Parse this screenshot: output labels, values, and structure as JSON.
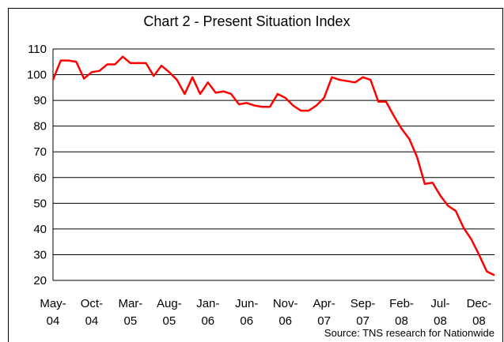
{
  "chart_data": {
    "type": "line",
    "title": "Chart 2 - Present Situation Index",
    "annotation": "Source: TNS research for Nationwide",
    "categories": [
      "May-04",
      null,
      null,
      null,
      null,
      "Oct-04",
      null,
      null,
      null,
      null,
      "Mar-05",
      null,
      null,
      null,
      null,
      "Aug-05",
      null,
      null,
      null,
      null,
      "Jan-06",
      null,
      null,
      null,
      null,
      "Jun-06",
      null,
      null,
      null,
      null,
      "Nov-06",
      null,
      null,
      null,
      null,
      "Apr-07",
      null,
      null,
      null,
      null,
      "Sep-07",
      null,
      null,
      null,
      null,
      "Feb-08",
      null,
      null,
      null,
      null,
      "Jul-08",
      null,
      null,
      null,
      null,
      "Dec-08",
      null,
      null
    ],
    "series": [
      {
        "name": "Present Situation Index",
        "color": "#ff0000",
        "values": [
          98,
          105.5,
          105.5,
          105,
          98.5,
          101,
          101.5,
          104,
          104,
          107,
          104.5,
          104.5,
          104.5,
          99.5,
          103.5,
          101,
          98,
          92.5,
          99,
          92.5,
          97,
          93,
          93.5,
          92.5,
          88.5,
          89,
          88,
          87.5,
          87.5,
          92.5,
          91,
          88,
          86,
          86,
          88,
          91,
          99,
          98,
          97.5,
          97,
          99,
          98,
          89.5,
          89.5,
          84,
          79,
          75,
          68,
          57.5,
          58,
          53,
          49,
          47,
          40.5,
          36,
          30,
          23.5,
          22
        ]
      }
    ],
    "ylim": [
      20,
      110
    ],
    "yticks": [
      20,
      30,
      40,
      50,
      60,
      70,
      80,
      90,
      100,
      110
    ],
    "grid": true
  }
}
